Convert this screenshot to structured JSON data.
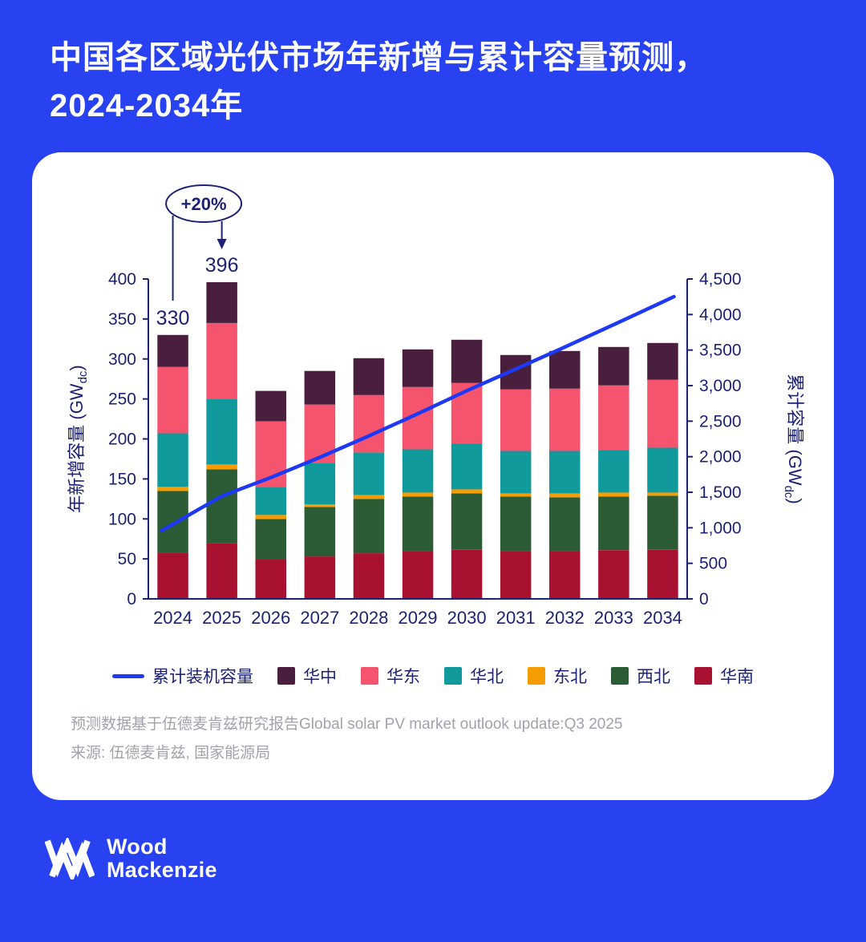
{
  "header": {
    "title_line1": "中国各区域光伏市场年新增与累计容量预测，",
    "title_line2": "2024-2034年"
  },
  "colors": {
    "background": "#2842F2",
    "card": "#FFFFFF",
    "axis_text": "#1D2274",
    "line": "#1D39F5",
    "footnote": "#9FA3AC"
  },
  "chart_data": {
    "type": "bar",
    "stacked": true,
    "title": "中国各区域光伏市场年新增与累计容量预测，2024-2034年",
    "categories": [
      "2024",
      "2025",
      "2026",
      "2027",
      "2028",
      "2029",
      "2030",
      "2031",
      "2032",
      "2033",
      "2034"
    ],
    "series": [
      {
        "name": "华南",
        "color": "#A8112F",
        "values": [
          58,
          70,
          50,
          53,
          57,
          60,
          62,
          60,
          60,
          61,
          62
        ]
      },
      {
        "name": "西北",
        "color": "#2C5C35",
        "values": [
          77,
          92,
          50,
          62,
          68,
          68,
          70,
          68,
          67,
          67,
          67
        ]
      },
      {
        "name": "东北",
        "color": "#F59C00",
        "values": [
          5,
          6,
          5,
          3,
          5,
          5,
          5,
          4,
          5,
          5,
          4
        ]
      },
      {
        "name": "华北",
        "color": "#109A9C",
        "values": [
          67,
          82,
          35,
          52,
          53,
          54,
          57,
          53,
          53,
          53,
          56
        ]
      },
      {
        "name": "华东",
        "color": "#F4546D",
        "values": [
          83,
          95,
          82,
          73,
          72,
          78,
          76,
          77,
          78,
          81,
          85
        ]
      },
      {
        "name": "华中",
        "color": "#4A1F3E",
        "values": [
          40,
          51,
          38,
          42,
          46,
          47,
          54,
          43,
          47,
          48,
          46
        ]
      }
    ],
    "line_series": {
      "name": "累计装机容量",
      "color": "#1D39F5",
      "values": [
        1050,
        1446,
        1706,
        1991,
        2292,
        2604,
        2928,
        3233,
        3543,
        3858,
        4178
      ]
    },
    "left_axis": {
      "label_main": "年新增容量 (GW",
      "label_sub": "dc",
      "label_close": ")",
      "min": 0,
      "max": 400,
      "step": 50
    },
    "right_axis": {
      "label_main": "累计容量 (GW",
      "label_sub": "dc",
      "label_close": ")",
      "min": 0,
      "max": 4500,
      "step": 500
    },
    "bar_labels": [
      {
        "index": 0,
        "category": "2024",
        "text": "330"
      },
      {
        "index": 1,
        "category": "2025",
        "text": "396"
      }
    ],
    "annotation": {
      "text": "+20%"
    },
    "legend_position": "bottom",
    "grid": false
  },
  "footnotes": {
    "line1": "预测数据基于伍德麦肯兹研究报告Global solar PV market outlook update:Q3 2025",
    "line2": "来源: 伍德麦肯兹, 国家能源局"
  },
  "logo": {
    "line1": "Wood",
    "line2": "Mackenzie"
  }
}
